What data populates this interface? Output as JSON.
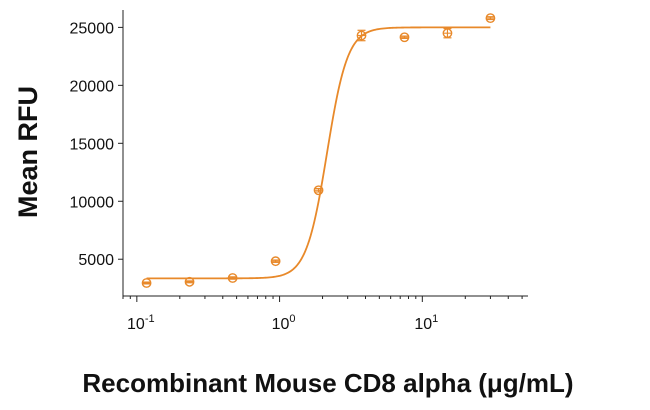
{
  "chart_data": {
    "type": "scatter",
    "xscale": "log",
    "xlabel": "Recombinant Mouse CD8 alpha (μg/mL)",
    "ylabel": "Mean RFU",
    "xlim": [
      0.08,
      55
    ],
    "ylim": [
      2000,
      26500
    ],
    "yticks": [
      5000,
      10000,
      15000,
      20000,
      25000
    ],
    "xticks": [
      {
        "value": 0.1,
        "base": "10",
        "exp": "-1"
      },
      {
        "value": 1,
        "base": "10",
        "exp": "0"
      },
      {
        "value": 10,
        "base": "10",
        "exp": "1"
      }
    ],
    "color": "#E8892A",
    "points": [
      {
        "x": 0.117,
        "y": 2950,
        "err": 80
      },
      {
        "x": 0.234,
        "y": 3050,
        "err": 80
      },
      {
        "x": 0.469,
        "y": 3380,
        "err": 100
      },
      {
        "x": 0.938,
        "y": 4830,
        "err": 100
      },
      {
        "x": 1.875,
        "y": 10950,
        "err": 150
      },
      {
        "x": 3.75,
        "y": 24300,
        "err": 450
      },
      {
        "x": 7.5,
        "y": 24150,
        "err": 100
      },
      {
        "x": 15,
        "y": 24500,
        "err": 400
      },
      {
        "x": 30,
        "y": 25800,
        "err": 120
      }
    ],
    "fit": {
      "model": "4PL",
      "bottom": 3350,
      "top": 25000,
      "ec50": 2.15,
      "hill": 6.0,
      "x_range": [
        0.117,
        30
      ]
    }
  }
}
